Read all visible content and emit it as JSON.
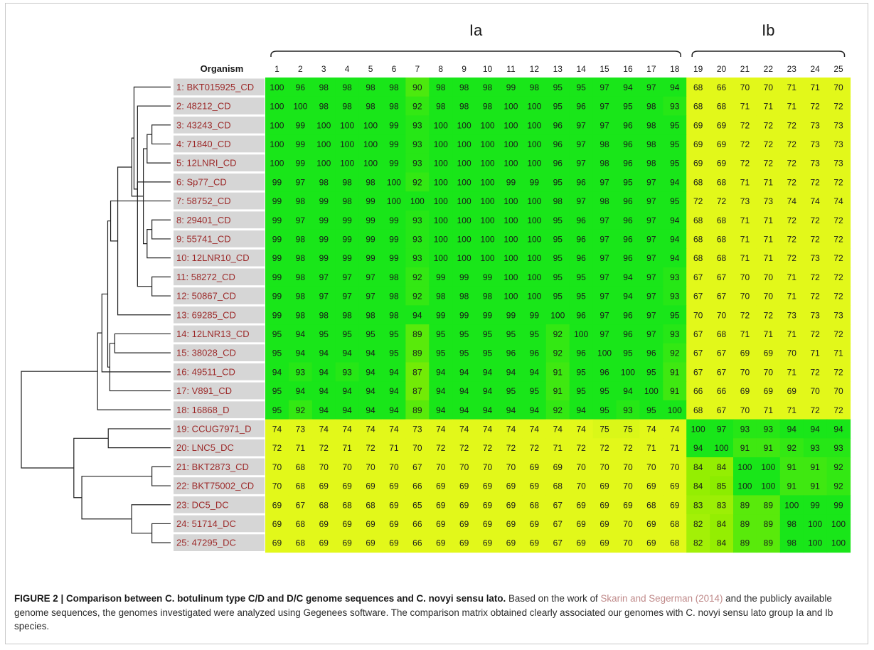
{
  "groups": [
    {
      "label": "Ia",
      "from": 1,
      "to": 18
    },
    {
      "label": "Ib",
      "from": 19,
      "to": 25
    }
  ],
  "organism_header": "Organism",
  "column_numbers": [
    "1",
    "2",
    "3",
    "4",
    "5",
    "6",
    "7",
    "8",
    "9",
    "10",
    "11",
    "12",
    "13",
    "14",
    "15",
    "16",
    "17",
    "18",
    "19",
    "20",
    "21",
    "22",
    "23",
    "24",
    "25"
  ],
  "organisms": [
    "1: BKT015925_CD",
    "2: 48212_CD",
    "3: 43243_CD",
    "4: 71840_CD",
    "5: 12LNRI_CD",
    "6: Sp77_CD",
    "7: 58752_CD",
    "8: 29401_CD",
    "9: 55741_CD",
    "10: 12LNR10_CD",
    "11: 58272_CD",
    "12: 50867_CD",
    "13: 69285_CD",
    "14: 12LNR13_CD",
    "15: 38028_CD",
    "16: 49511_CD",
    "17: V891_CD",
    "18: 16868_D",
    "19: CCUG7971_D",
    "20: LNC5_DC",
    "21: BKT2873_CD",
    "22: BKT75002_CD",
    "23: DC5_DC",
    "24: 51714_DC",
    "25: 47295_DC"
  ],
  "matrix": [
    [
      100,
      96,
      98,
      98,
      98,
      98,
      90,
      98,
      98,
      98,
      99,
      98,
      95,
      95,
      97,
      94,
      97,
      94,
      68,
      66,
      70,
      70,
      71,
      71,
      70
    ],
    [
      100,
      100,
      98,
      98,
      98,
      98,
      92,
      98,
      98,
      98,
      100,
      100,
      95,
      96,
      97,
      95,
      98,
      93,
      68,
      68,
      71,
      71,
      71,
      72,
      72
    ],
    [
      100,
      99,
      100,
      100,
      100,
      99,
      93,
      100,
      100,
      100,
      100,
      100,
      96,
      97,
      97,
      96,
      98,
      95,
      69,
      69,
      72,
      72,
      72,
      73,
      73
    ],
    [
      100,
      99,
      100,
      100,
      100,
      99,
      93,
      100,
      100,
      100,
      100,
      100,
      96,
      97,
      98,
      96,
      98,
      95,
      69,
      69,
      72,
      72,
      72,
      73,
      73
    ],
    [
      100,
      99,
      100,
      100,
      100,
      99,
      93,
      100,
      100,
      100,
      100,
      100,
      96,
      97,
      98,
      96,
      98,
      95,
      69,
      69,
      72,
      72,
      72,
      73,
      73
    ],
    [
      99,
      97,
      98,
      98,
      98,
      100,
      92,
      100,
      100,
      100,
      99,
      99,
      95,
      96,
      97,
      95,
      97,
      94,
      68,
      68,
      71,
      71,
      72,
      72,
      72
    ],
    [
      99,
      98,
      99,
      98,
      99,
      100,
      100,
      100,
      100,
      100,
      100,
      100,
      98,
      97,
      98,
      96,
      97,
      95,
      72,
      72,
      73,
      73,
      74,
      74,
      74
    ],
    [
      99,
      97,
      99,
      99,
      99,
      99,
      93,
      100,
      100,
      100,
      100,
      100,
      95,
      96,
      97,
      96,
      97,
      94,
      68,
      68,
      71,
      71,
      72,
      72,
      72
    ],
    [
      99,
      98,
      99,
      99,
      99,
      99,
      93,
      100,
      100,
      100,
      100,
      100,
      95,
      96,
      97,
      96,
      97,
      94,
      68,
      68,
      71,
      71,
      72,
      72,
      72
    ],
    [
      99,
      98,
      99,
      99,
      99,
      99,
      93,
      100,
      100,
      100,
      100,
      100,
      95,
      96,
      97,
      96,
      97,
      94,
      68,
      68,
      71,
      71,
      72,
      73,
      72
    ],
    [
      99,
      98,
      97,
      97,
      97,
      98,
      92,
      99,
      99,
      99,
      100,
      100,
      95,
      95,
      97,
      94,
      97,
      93,
      67,
      67,
      70,
      70,
      71,
      72,
      72
    ],
    [
      99,
      98,
      97,
      97,
      97,
      98,
      92,
      98,
      98,
      98,
      100,
      100,
      95,
      95,
      97,
      94,
      97,
      93,
      67,
      67,
      70,
      70,
      71,
      72,
      72
    ],
    [
      99,
      98,
      98,
      98,
      98,
      98,
      94,
      99,
      99,
      99,
      99,
      99,
      100,
      96,
      97,
      96,
      97,
      95,
      70,
      70,
      72,
      72,
      73,
      73,
      73
    ],
    [
      95,
      94,
      95,
      95,
      95,
      95,
      89,
      95,
      95,
      95,
      95,
      95,
      92,
      100,
      97,
      96,
      97,
      93,
      67,
      68,
      71,
      71,
      71,
      72,
      72
    ],
    [
      95,
      94,
      94,
      94,
      94,
      95,
      89,
      95,
      95,
      95,
      96,
      96,
      92,
      96,
      100,
      95,
      96,
      92,
      67,
      67,
      69,
      69,
      70,
      71,
      71
    ],
    [
      94,
      93,
      94,
      93,
      94,
      94,
      87,
      94,
      94,
      94,
      94,
      94,
      91,
      95,
      96,
      100,
      95,
      91,
      67,
      67,
      70,
      70,
      71,
      72,
      72
    ],
    [
      95,
      94,
      94,
      94,
      94,
      94,
      87,
      94,
      94,
      94,
      95,
      95,
      91,
      95,
      95,
      94,
      100,
      91,
      66,
      66,
      69,
      69,
      69,
      70,
      70
    ],
    [
      95,
      92,
      94,
      94,
      94,
      94,
      89,
      94,
      94,
      94,
      94,
      94,
      92,
      94,
      95,
      93,
      95,
      100,
      68,
      67,
      70,
      71,
      71,
      72,
      72
    ],
    [
      74,
      73,
      74,
      74,
      74,
      74,
      73,
      74,
      74,
      74,
      74,
      74,
      74,
      74,
      75,
      75,
      74,
      74,
      100,
      97,
      93,
      93,
      94,
      94,
      94
    ],
    [
      72,
      71,
      72,
      71,
      72,
      71,
      70,
      72,
      72,
      72,
      72,
      72,
      71,
      72,
      72,
      72,
      71,
      71,
      94,
      100,
      91,
      91,
      92,
      93,
      93
    ],
    [
      70,
      68,
      70,
      70,
      70,
      70,
      67,
      70,
      70,
      70,
      70,
      69,
      69,
      70,
      70,
      70,
      70,
      70,
      84,
      84,
      100,
      100,
      91,
      91,
      92
    ],
    [
      70,
      68,
      69,
      69,
      69,
      69,
      66,
      69,
      69,
      69,
      69,
      69,
      68,
      70,
      69,
      70,
      69,
      69,
      84,
      85,
      100,
      100,
      91,
      91,
      92
    ],
    [
      69,
      67,
      68,
      68,
      68,
      69,
      65,
      69,
      69,
      69,
      69,
      68,
      67,
      69,
      69,
      69,
      68,
      69,
      83,
      83,
      89,
      89,
      100,
      99,
      99
    ],
    [
      69,
      68,
      69,
      69,
      69,
      69,
      66,
      69,
      69,
      69,
      69,
      69,
      67,
      69,
      69,
      70,
      69,
      68,
      82,
      84,
      89,
      89,
      98,
      100,
      100
    ],
    [
      69,
      68,
      69,
      69,
      69,
      69,
      66,
      69,
      69,
      69,
      69,
      69,
      67,
      69,
      69,
      70,
      69,
      68,
      82,
      84,
      89,
      89,
      98,
      100,
      100
    ]
  ],
  "colors": {
    "high": "#19e619",
    "mid": "#8ced00",
    "low": "#e2f81a",
    "label_bg": "#d6d6d6",
    "label_text": "#9c2a2a"
  },
  "caption": {
    "lead": "FIGURE 2 | Comparison between C. botulinum type C/D and D/C genome sequences and C. novyi sensu lato.",
    "text1": " Based on the work of ",
    "cite": "Skarin and Segerman (2014)",
    "text2": " and the publicly available genome sequences, the genomes investigated were analyzed using Gegenees software. The comparison matrix obtained clearly associated our genomes with C. novyi sensu lato group Ia and Ib species."
  }
}
